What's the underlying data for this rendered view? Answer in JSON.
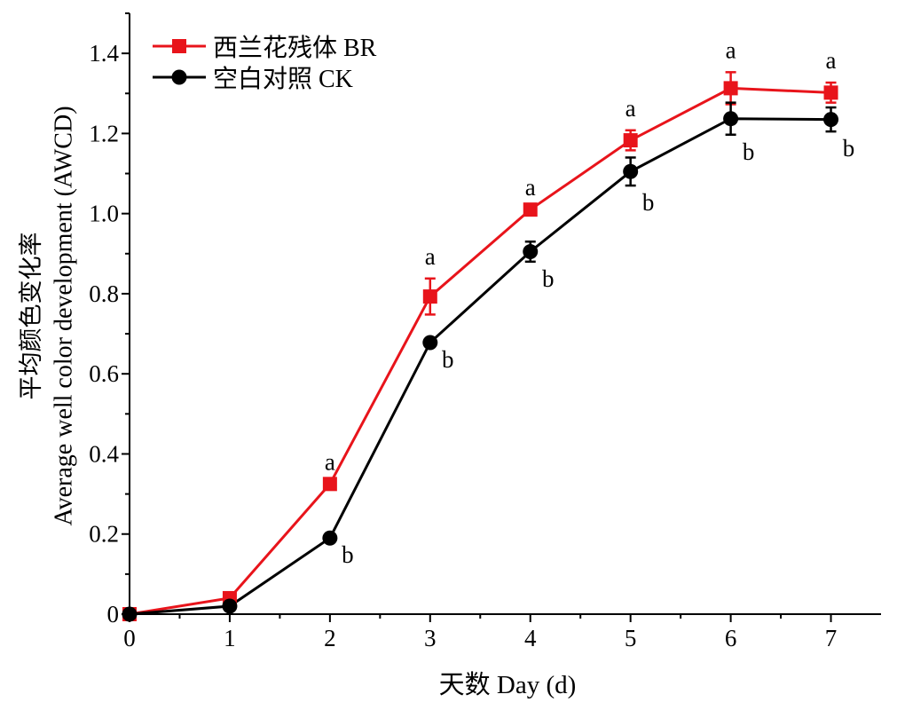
{
  "chart_data": {
    "type": "line",
    "xlabel": "天数 Day (d)",
    "ylabel_cn": "平均颜色变化率",
    "ylabel_en": "Average well color development (AWCD)",
    "xlim": [
      0,
      7.5
    ],
    "ylim": [
      0,
      1.5
    ],
    "xticks": [
      0,
      1,
      2,
      3,
      4,
      5,
      6,
      7
    ],
    "xtick_labels": [
      "0",
      "1",
      "2",
      "3",
      "4",
      "5",
      "6",
      "7"
    ],
    "yticks": [
      0,
      0.2,
      0.4,
      0.6,
      0.8,
      1.0,
      1.2,
      1.4
    ],
    "ytick_labels": [
      "0",
      "0.2",
      "0.4",
      "0.6",
      "0.8",
      "1.0",
      "1.2",
      "1.4"
    ],
    "legend_position": "top-left",
    "grid": false,
    "series": [
      {
        "name": "西兰花残体 BR",
        "color": "#e8141b",
        "marker": "square",
        "x": [
          0,
          1,
          2,
          3,
          4,
          5,
          6,
          7
        ],
        "values": [
          0.0,
          0.04,
          0.325,
          0.793,
          1.01,
          1.183,
          1.313,
          1.302
        ],
        "errors": [
          0,
          0,
          0,
          0.045,
          0,
          0.025,
          0.04,
          0.025
        ],
        "letters": [
          "",
          "",
          "a",
          "a",
          "a",
          "a",
          "a",
          "a"
        ]
      },
      {
        "name": "空白对照 CK",
        "color": "#000000",
        "marker": "circle",
        "x": [
          0,
          1,
          2,
          3,
          4,
          5,
          6,
          7
        ],
        "values": [
          0.0,
          0.02,
          0.19,
          0.678,
          0.905,
          1.105,
          1.237,
          1.235
        ],
        "errors": [
          0,
          0,
          0,
          0,
          0.025,
          0.035,
          0.04,
          0.03
        ],
        "letters": [
          "",
          "",
          "b",
          "b",
          "b",
          "b",
          "b",
          "b"
        ]
      }
    ]
  }
}
